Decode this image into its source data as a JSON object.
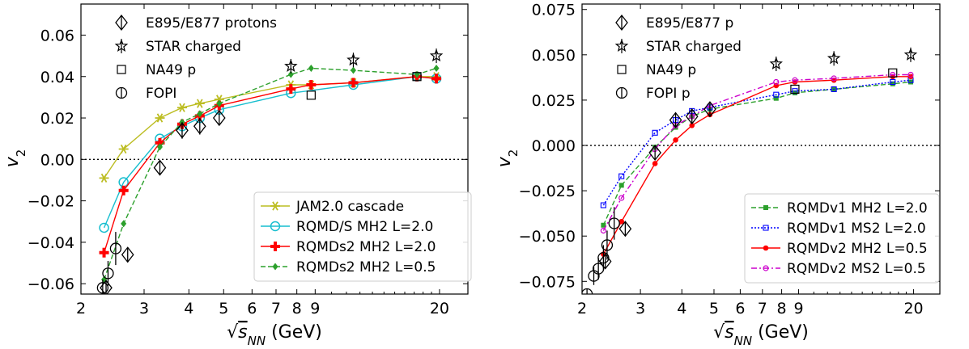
{
  "figure": {
    "xlabel_unit": " (GeV)",
    "ylabel": "v",
    "ylabel_sub": "2"
  },
  "chart_data": [
    {
      "type": "line",
      "title": "",
      "xlabel": "√sNN (GeV)",
      "ylabel": "v2",
      "xscale": "log",
      "xlim": [
        2.0,
        24.0
      ],
      "ylim": [
        -0.065,
        0.075
      ],
      "xticks": [
        2,
        3,
        4,
        5,
        6,
        7,
        8,
        9,
        20
      ],
      "yticks": [
        -0.06,
        -0.04,
        -0.02,
        0.0,
        0.02,
        0.04,
        0.06
      ],
      "ytick_labels": [
        "−0.06",
        "−0.04",
        "−0.02",
        "0.00",
        "0.02",
        "0.04",
        "0.06"
      ],
      "zero_line": true,
      "legend_top": [
        {
          "label": "E895/E877 protons",
          "marker": "diamond-bar"
        },
        {
          "label": "STAR charged",
          "marker": "star-bar"
        },
        {
          "label": "NA49 p",
          "marker": "square"
        },
        {
          "label": "FOPI",
          "marker": "circle-bar"
        }
      ],
      "legend_bottom": [
        {
          "label": "JAM2.0 cascade",
          "color": "#bcbd22",
          "marker": "star-x",
          "dash": "solid"
        },
        {
          "label": "RQMD/S MH2 L=2.0",
          "color": "#17becf",
          "marker": "open-circle",
          "dash": "solid"
        },
        {
          "label": "RQMDs2 MH2 L=2.0",
          "color": "#ff0000",
          "marker": "plus",
          "dash": "solid"
        },
        {
          "label": "RQMDs2 MH2 L=0.5",
          "color": "#2ca02c",
          "marker": "diamond-filled",
          "dash": "dashed"
        }
      ],
      "series": [
        {
          "name": "JAM2.0 cascade",
          "color": "#bcbd22",
          "marker": "star-x",
          "dash": "solid",
          "x": [
            2.32,
            2.63,
            3.32,
            3.83,
            4.29,
            4.86,
            7.7,
            8.77,
            11.5,
            17.3,
            19.6
          ],
          "y": [
            -0.009,
            0.005,
            0.02,
            0.025,
            0.027,
            0.029,
            0.036,
            0.036,
            0.037,
            0.04,
            0.04
          ]
        },
        {
          "name": "RQMD/S MH2 L=2.0",
          "color": "#17becf",
          "marker": "open-circle",
          "dash": "solid",
          "x": [
            2.32,
            2.63,
            3.32,
            3.83,
            4.29,
            4.86,
            7.7,
            11.5,
            17.3,
            19.6
          ],
          "y": [
            -0.033,
            -0.011,
            0.01,
            0.016,
            0.02,
            0.024,
            0.032,
            0.036,
            0.04,
            0.039
          ]
        },
        {
          "name": "RQMDs2 MH2 L=2.0",
          "color": "#ff0000",
          "marker": "plus",
          "dash": "solid",
          "x": [
            2.32,
            2.63,
            3.32,
            3.83,
            4.29,
            4.86,
            7.7,
            8.77,
            11.5,
            17.3,
            19.6
          ],
          "y": [
            -0.045,
            -0.015,
            0.008,
            0.017,
            0.021,
            0.026,
            0.034,
            0.036,
            0.037,
            0.04,
            0.039
          ]
        },
        {
          "name": "RQMDs2 MH2 L=0.5",
          "color": "#2ca02c",
          "marker": "diamond-filled",
          "dash": "dashed",
          "x": [
            2.32,
            2.63,
            3.32,
            3.83,
            4.29,
            4.86,
            7.7,
            8.77,
            11.5,
            17.3,
            19.6
          ],
          "y": [
            -0.058,
            -0.031,
            0.006,
            0.018,
            0.022,
            0.027,
            0.041,
            0.044,
            0.043,
            0.041,
            0.044
          ]
        }
      ],
      "experiments": {
        "E895/E877": {
          "x": [
            2.35,
            2.7,
            3.32,
            3.83,
            4.29,
            4.86
          ],
          "y": [
            -0.062,
            -0.046,
            -0.004,
            0.014,
            0.016,
            0.02
          ],
          "err": [
            0.003,
            0.003,
            0.003,
            0.004,
            0.004,
            0.003
          ]
        },
        "STAR": {
          "x": [
            7.7,
            11.5,
            19.6
          ],
          "y": [
            0.045,
            0.048,
            0.05
          ]
        },
        "NA49": {
          "x": [
            8.77,
            17.3
          ],
          "y": [
            0.031,
            0.04
          ]
        },
        "FOPI": {
          "x": [
            2.3,
            2.38,
            2.5
          ],
          "y": [
            -0.062,
            -0.055,
            -0.043
          ],
          "err": [
            0.004,
            0.006,
            0.008
          ]
        }
      }
    },
    {
      "type": "line",
      "title": "",
      "xlabel": "√sNN (GeV)",
      "ylabel": "v2",
      "xscale": "log",
      "xlim": [
        2.0,
        24.0
      ],
      "ylim": [
        -0.082,
        0.078
      ],
      "xticks": [
        2,
        3,
        4,
        5,
        6,
        7,
        8,
        9,
        20
      ],
      "yticks": [
        -0.075,
        -0.05,
        -0.025,
        0.0,
        0.025,
        0.05,
        0.075
      ],
      "ytick_labels": [
        "−0.075",
        "−0.050",
        "−0.025",
        "0.000",
        "0.025",
        "0.050",
        "0.075"
      ],
      "zero_line": true,
      "legend_top": [
        {
          "label": "E895/E877 p",
          "marker": "diamond-bar"
        },
        {
          "label": "STAR charged",
          "marker": "star-bar"
        },
        {
          "label": "NA49 p",
          "marker": "square"
        },
        {
          "label": "FOPI p",
          "marker": "circle-bar"
        }
      ],
      "legend_bottom": [
        {
          "label": "RQMDv1 MH2 L=2.0",
          "color": "#2ca02c",
          "marker": "square-filled",
          "dash": "dashed"
        },
        {
          "label": "RQMDv1 MS2 L=2.0",
          "color": "#0000ff",
          "marker": "open-square",
          "dash": "dotted"
        },
        {
          "label": "RQMDv2 MH2 L=0.5",
          "color": "#ff0000",
          "marker": "filled-circle",
          "dash": "solid"
        },
        {
          "label": "RQMDv2 MS2 L=0.5",
          "color": "#cc00cc",
          "marker": "open-circle-small",
          "dash": "dashdot"
        }
      ],
      "series": [
        {
          "name": "RQMDv1 MH2 L=2.0",
          "color": "#2ca02c",
          "marker": "square-filled",
          "dash": "dashed",
          "x": [
            2.32,
            2.63,
            3.32,
            3.83,
            4.29,
            4.86,
            7.7,
            8.77,
            11.5,
            17.3,
            19.6
          ],
          "y": [
            -0.044,
            -0.022,
            -0.001,
            0.01,
            0.016,
            0.02,
            0.026,
            0.029,
            0.031,
            0.034,
            0.035
          ]
        },
        {
          "name": "RQMDv1 MS2 L=2.0",
          "color": "#0000ff",
          "marker": "open-square",
          "dash": "dotted",
          "x": [
            2.32,
            2.63,
            3.32,
            3.83,
            4.29,
            4.86,
            7.7,
            8.77,
            11.5,
            17.3,
            19.6
          ],
          "y": [
            -0.033,
            -0.017,
            0.007,
            0.014,
            0.019,
            0.021,
            0.028,
            0.03,
            0.031,
            0.035,
            0.036
          ]
        },
        {
          "name": "RQMDv2 MH2 L=0.5",
          "color": "#ff0000",
          "marker": "filled-circle",
          "dash": "solid",
          "x": [
            2.32,
            2.63,
            3.32,
            3.83,
            4.29,
            4.86,
            7.7,
            8.77,
            11.5,
            17.3,
            19.6
          ],
          "y": [
            -0.06,
            -0.042,
            -0.01,
            0.003,
            0.011,
            0.017,
            0.033,
            0.035,
            0.036,
            0.038,
            0.038
          ]
        },
        {
          "name": "RQMDv2 MS2 L=0.5",
          "color": "#cc00cc",
          "marker": "open-circle-small",
          "dash": "dashdot",
          "x": [
            2.32,
            2.63,
            3.32,
            3.83,
            4.29,
            4.86,
            7.7,
            8.77,
            11.5,
            17.3,
            19.6
          ],
          "y": [
            -0.047,
            -0.029,
            -0.002,
            0.011,
            0.016,
            0.022,
            0.035,
            0.036,
            0.037,
            0.039,
            0.039
          ]
        }
      ],
      "experiments": {
        "E895/E877": {
          "x": [
            2.35,
            2.7,
            3.32,
            3.83,
            4.29,
            4.86
          ],
          "y": [
            -0.064,
            -0.046,
            -0.004,
            0.014,
            0.016,
            0.02
          ],
          "err": [
            0.003,
            0.004,
            0.003,
            0.004,
            0.004,
            0.003
          ]
        },
        "STAR": {
          "x": [
            7.7,
            11.5,
            19.6
          ],
          "y": [
            0.045,
            0.048,
            0.05
          ]
        },
        "NA49": {
          "x": [
            8.77,
            17.3
          ],
          "y": [
            0.031,
            0.04
          ]
        },
        "FOPI": {
          "x": [
            2.07,
            2.17,
            2.24,
            2.32,
            2.38,
            2.5
          ],
          "y": [
            -0.082,
            -0.072,
            -0.068,
            -0.062,
            -0.055,
            -0.043
          ],
          "err": [
            0.003,
            0.005,
            0.006,
            0.007,
            0.008,
            0.009
          ]
        }
      }
    }
  ]
}
